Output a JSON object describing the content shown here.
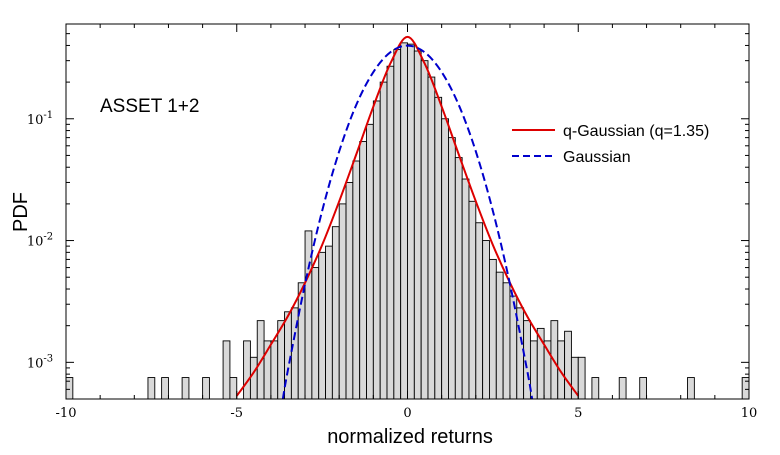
{
  "chart_data": {
    "type": "histogram",
    "xlabel": "normalized returns",
    "ylabel": "PDF",
    "annotation": "ASSET 1+2",
    "xlim": [
      -10,
      10
    ],
    "ylim": [
      0.0005,
      0.6
    ],
    "yscale": "log",
    "x_ticks": [
      {
        "v": -10,
        "label": "-10"
      },
      {
        "v": -5,
        "label": "-5"
      },
      {
        "v": 0,
        "label": "0"
      },
      {
        "v": 5,
        "label": "5"
      },
      {
        "v": 10,
        "label": "10"
      }
    ],
    "y_ticks": [
      {
        "v": 0.001,
        "base": "10",
        "exp": "-3"
      },
      {
        "v": 0.01,
        "base": "10",
        "exp": "-2"
      },
      {
        "v": 0.1,
        "base": "10",
        "exp": "-1"
      }
    ],
    "legend": {
      "position": "right",
      "entries": [
        {
          "label": "q-Gaussian (q=1.35)",
          "color": "#dd0000",
          "style": "solid"
        },
        {
          "label": "Gaussian",
          "color": "#0000cc",
          "style": "dashed"
        }
      ]
    },
    "histogram": {
      "bin_width": 0.2,
      "fill": "#d9d9d9",
      "bins": [
        {
          "x": -9.9,
          "y": 0.00075
        },
        {
          "x": -7.5,
          "y": 0.00075
        },
        {
          "x": -7.1,
          "y": 0.00075
        },
        {
          "x": -6.5,
          "y": 0.00075
        },
        {
          "x": -5.9,
          "y": 0.00075
        },
        {
          "x": -5.3,
          "y": 0.0015
        },
        {
          "x": -5.1,
          "y": 0.00075
        },
        {
          "x": -4.7,
          "y": 0.0015
        },
        {
          "x": -4.5,
          "y": 0.0011
        },
        {
          "x": -4.3,
          "y": 0.0022
        },
        {
          "x": -4.1,
          "y": 0.0015
        },
        {
          "x": -3.9,
          "y": 0.0015
        },
        {
          "x": -3.7,
          "y": 0.0022
        },
        {
          "x": -3.5,
          "y": 0.0026
        },
        {
          "x": -3.3,
          "y": 0.0028
        },
        {
          "x": -3.1,
          "y": 0.0045
        },
        {
          "x": -2.9,
          "y": 0.012
        },
        {
          "x": -2.7,
          "y": 0.006
        },
        {
          "x": -2.5,
          "y": 0.008
        },
        {
          "x": -2.3,
          "y": 0.009
        },
        {
          "x": -2.1,
          "y": 0.013
        },
        {
          "x": -1.9,
          "y": 0.02
        },
        {
          "x": -1.7,
          "y": 0.03
        },
        {
          "x": -1.5,
          "y": 0.045
        },
        {
          "x": -1.3,
          "y": 0.065
        },
        {
          "x": -1.1,
          "y": 0.09
        },
        {
          "x": -0.9,
          "y": 0.14
        },
        {
          "x": -0.7,
          "y": 0.2
        },
        {
          "x": -0.5,
          "y": 0.27
        },
        {
          "x": -0.3,
          "y": 0.37
        },
        {
          "x": -0.1,
          "y": 0.42
        },
        {
          "x": 0.1,
          "y": 0.41
        },
        {
          "x": 0.3,
          "y": 0.36
        },
        {
          "x": 0.5,
          "y": 0.3
        },
        {
          "x": 0.7,
          "y": 0.22
        },
        {
          "x": 0.9,
          "y": 0.15
        },
        {
          "x": 1.1,
          "y": 0.1
        },
        {
          "x": 1.3,
          "y": 0.07
        },
        {
          "x": 1.5,
          "y": 0.048
        },
        {
          "x": 1.7,
          "y": 0.032
        },
        {
          "x": 1.9,
          "y": 0.021
        },
        {
          "x": 2.1,
          "y": 0.014
        },
        {
          "x": 2.3,
          "y": 0.01
        },
        {
          "x": 2.5,
          "y": 0.007
        },
        {
          "x": 2.7,
          "y": 0.0055
        },
        {
          "x": 2.9,
          "y": 0.0045
        },
        {
          "x": 3.1,
          "y": 0.0035
        },
        {
          "x": 3.3,
          "y": 0.0028
        },
        {
          "x": 3.5,
          "y": 0.0022
        },
        {
          "x": 3.7,
          "y": 0.0015
        },
        {
          "x": 3.9,
          "y": 0.0019
        },
        {
          "x": 4.1,
          "y": 0.0015
        },
        {
          "x": 4.3,
          "y": 0.0022
        },
        {
          "x": 4.5,
          "y": 0.0015
        },
        {
          "x": 4.7,
          "y": 0.0018
        },
        {
          "x": 4.9,
          "y": 0.0011
        },
        {
          "x": 5.1,
          "y": 0.0011
        },
        {
          "x": 5.5,
          "y": 0.00075
        },
        {
          "x": 6.3,
          "y": 0.00075
        },
        {
          "x": 6.9,
          "y": 0.00075
        },
        {
          "x": 8.3,
          "y": 0.00075
        },
        {
          "x": 9.9,
          "y": 0.00075
        }
      ]
    },
    "series": [
      {
        "name": "q-Gaussian (q=1.35)",
        "color": "#dd0000",
        "style": "solid",
        "x": [
          -5.0,
          -4.5,
          -4.0,
          -3.5,
          -3.0,
          -2.5,
          -2.0,
          -1.5,
          -1.0,
          -0.5,
          0.0,
          0.5,
          1.0,
          1.5,
          2.0,
          2.5,
          3.0,
          3.5,
          4.0,
          4.5,
          5.0
        ],
        "y": [
          0.00053,
          0.00083,
          0.0014,
          0.0024,
          0.0045,
          0.0092,
          0.021,
          0.051,
          0.126,
          0.285,
          0.47,
          0.285,
          0.126,
          0.051,
          0.021,
          0.0092,
          0.0045,
          0.0024,
          0.0014,
          0.00083,
          0.00053
        ]
      },
      {
        "name": "Gaussian",
        "color": "#0000cc",
        "style": "dashed",
        "x": [
          -3.65,
          -3.5,
          -3.0,
          -2.5,
          -2.0,
          -1.5,
          -1.0,
          -0.5,
          0.0,
          0.5,
          1.0,
          1.5,
          2.0,
          2.5,
          3.0,
          3.5,
          3.65
        ],
        "y": [
          0.0005,
          0.00087,
          0.0044,
          0.0175,
          0.054,
          0.13,
          0.242,
          0.352,
          0.399,
          0.352,
          0.242,
          0.13,
          0.054,
          0.0175,
          0.0044,
          0.00087,
          0.0005
        ]
      }
    ]
  }
}
